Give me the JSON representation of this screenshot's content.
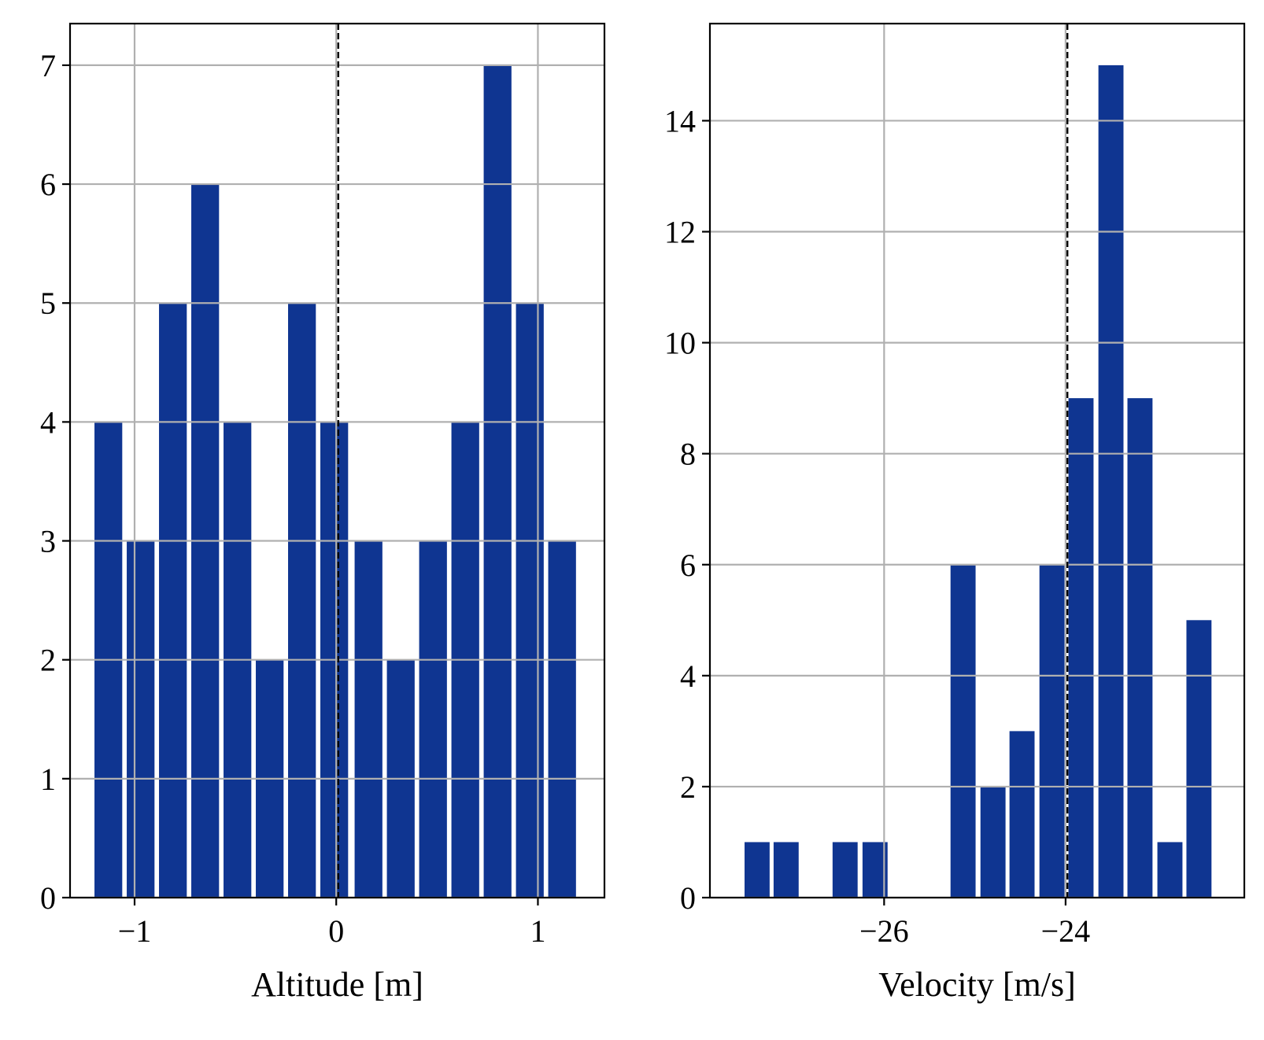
{
  "chart_data": [
    {
      "type": "bar",
      "histogram": true,
      "x": [
        -1.13,
        -0.97,
        -0.81,
        -0.65,
        -0.49,
        -0.33,
        -0.17,
        -0.01,
        0.16,
        0.32,
        0.48,
        0.64,
        0.8,
        0.96,
        1.12
      ],
      "values": [
        4,
        3,
        5,
        6,
        4,
        2,
        5,
        4,
        3,
        2,
        3,
        4,
        7,
        5,
        3
      ],
      "bin_width": 0.162,
      "xlabel": "Altitude [m]",
      "ylabel": "",
      "xlim": [
        -1.32,
        1.33
      ],
      "ylim": [
        0,
        7.35
      ],
      "xticks": [
        -1,
        0,
        1
      ],
      "xtick_labels": [
        "−1",
        "0",
        "1"
      ],
      "yticks": [
        0,
        1,
        2,
        3,
        4,
        5,
        6,
        7
      ],
      "ytick_labels": [
        "0",
        "1",
        "2",
        "3",
        "4",
        "5",
        "6",
        "7"
      ],
      "reference_line": {
        "x": 0.01,
        "style": "dashed"
      },
      "grid": true,
      "bar_color": "#0f3591"
    },
    {
      "type": "bar",
      "histogram": true,
      "x": [
        -27.4,
        -27.08,
        -26.43,
        -26.1,
        -25.13,
        -24.8,
        -24.48,
        -24.15,
        -23.83,
        -23.5,
        -23.18,
        -22.85,
        -22.53
      ],
      "values": [
        1,
        1,
        1,
        1,
        6,
        2,
        3,
        6,
        9,
        15,
        9,
        1,
        5
      ],
      "bin_width": 0.325,
      "xlabel": "Velocity [m/s]",
      "ylabel": "",
      "xlim": [
        -27.92,
        -22.03
      ],
      "ylim": [
        0,
        15.75
      ],
      "xticks": [
        -26,
        -24
      ],
      "xtick_labels": [
        "−26",
        "−24"
      ],
      "yticks": [
        0,
        2,
        4,
        6,
        8,
        10,
        12,
        14
      ],
      "ytick_labels": [
        "0",
        "2",
        "4",
        "6",
        "8",
        "10",
        "12",
        "14"
      ],
      "reference_line": {
        "x": -23.98,
        "style": "dashed"
      },
      "grid": true,
      "bar_color": "#0f3591"
    }
  ]
}
